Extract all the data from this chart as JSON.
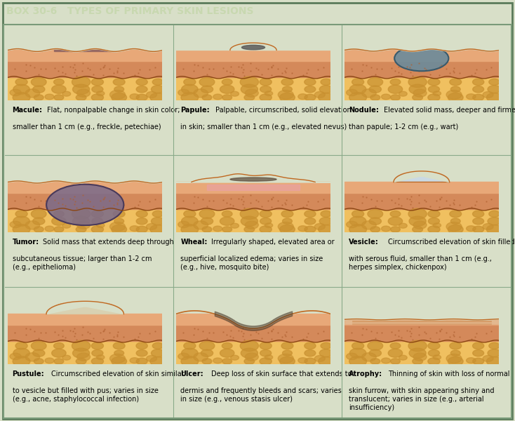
{
  "title": "BOX 30-6   TYPES OF PRIMARY SKIN LESIONS",
  "header_bg": "#2d6b3c",
  "header_text_color": "#c8d8b0",
  "body_bg": "#d8dfc8",
  "border_color": "#5a7a5a",
  "fig_bg": "#d0d8be",
  "lesions": [
    {
      "name": "Macule",
      "desc": "Flat, nonpalpable change in skin color;\nsmaller than 1 cm (e.g., freckle, petechiae)"
    },
    {
      "name": "Papule",
      "desc": "Palpable, circumscribed, solid elevation\nin skin; smaller than 1 cm (e.g., elevated nevus)"
    },
    {
      "name": "Nodule",
      "desc": "Elevated solid mass, deeper and firmer\nthan papule; 1-2 cm (e.g., wart)"
    },
    {
      "name": "Tumor",
      "desc": "Solid mass that extends deep through\nsubcutaneous tissue; larger than 1-2 cm\n(e.g., epithelioma)"
    },
    {
      "name": "Wheal",
      "desc": "Irregularly shaped, elevated area or\nsuperficial localized edema; varies in size\n(e.g., hive, mosquito bite)"
    },
    {
      "name": "Vesicle",
      "desc": "Circumscribed elevation of skin filled\nwith serous fluid, smaller than 1 cm (e.g.,\nherpes simplex, chickenpox)"
    },
    {
      "name": "Pustule",
      "desc": "Circumscribed elevation of skin similar\nto vesicle but filled with pus; varies in size\n(e.g., acne, staphylococcal infection)"
    },
    {
      "name": "Ulcer",
      "desc": "Deep loss of skin surface that extends to\ndermis and frequently bleeds and scars; varies\nin size (e.g., venous stasis ulcer)"
    },
    {
      "name": "Atrophy",
      "desc": "Thinning of skin with loss of normal\nskin furrow, with skin appearing shiny and\ntranslucent; varies in size (e.g., arterial\ninsufficiency)"
    }
  ],
  "skin_layers": {
    "epidermis_color": "#e8a878",
    "dermis_color": "#d4895a",
    "subcut_color": "#f0c060",
    "subcut_border": "#c89030",
    "border_line": "#8b4513",
    "wavy_color": "#c06820"
  }
}
